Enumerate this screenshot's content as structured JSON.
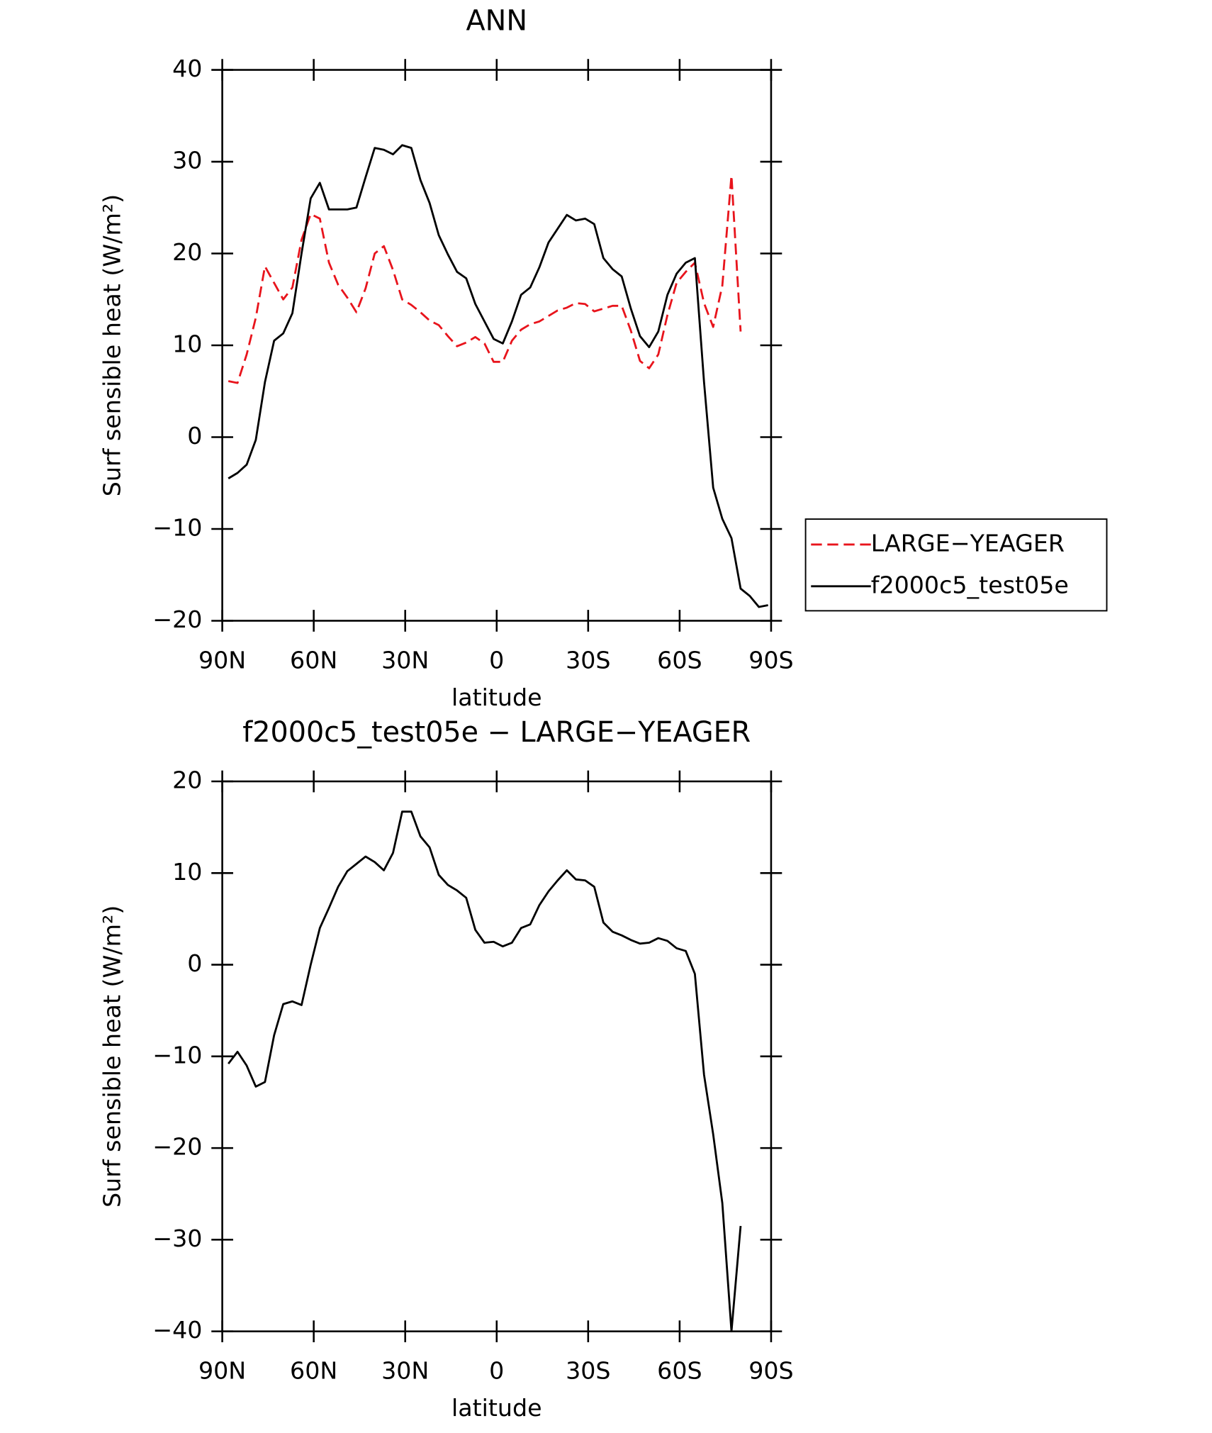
{
  "chart_data": [
    {
      "type": "line",
      "title": "ANN",
      "xlabel": "latitude",
      "ylabel": "Surf sensible heat (W/m²)",
      "x": [
        88,
        85,
        82,
        79,
        76,
        73,
        70,
        67,
        64,
        61,
        58,
        55,
        52,
        49,
        46,
        43,
        40,
        37,
        34,
        31,
        28,
        25,
        22,
        19,
        16,
        13,
        10,
        7,
        4,
        1,
        -2,
        -5,
        -8,
        -11,
        -14,
        -17,
        -20,
        -23,
        -26,
        -29,
        -32,
        -35,
        -38,
        -41,
        -44,
        -47,
        -50,
        -53,
        -56,
        -59,
        -62,
        -65,
        -68,
        -71,
        -74,
        -77,
        -80,
        -83,
        -86,
        -89
      ],
      "xlim": [
        90,
        -90
      ],
      "xticks": [
        {
          "value": 90,
          "label": "90N"
        },
        {
          "value": 60,
          "label": "60N"
        },
        {
          "value": 30,
          "label": "30N"
        },
        0,
        {
          "value": -30,
          "label": "30S"
        },
        {
          "value": -60,
          "label": "60S"
        },
        {
          "value": -90,
          "label": "90S"
        }
      ],
      "ylim": [
        -20,
        40
      ],
      "yticks": [
        {
          "value": -20,
          "label": "−20"
        },
        {
          "value": -10,
          "label": "−10"
        },
        0,
        10,
        20,
        30,
        40
      ],
      "legend": "right",
      "series": [
        {
          "name": "LARGE−YEAGER",
          "color": "#e8141c",
          "line_style": "dashed",
          "values": [
            6.1,
            5.9,
            9,
            13,
            18.6,
            16.8,
            15,
            16.3,
            21.5,
            24.3,
            23.8,
            19,
            16.6,
            15.2,
            13.6,
            16.2,
            20,
            20.8,
            18.2,
            15,
            14.4,
            13.6,
            12.7,
            12.2,
            11,
            9.9,
            10.3,
            10.9,
            10.2,
            8.2,
            8.2,
            10.5,
            11.7,
            12.3,
            12.6,
            13.2,
            13.8,
            14.1,
            14.6,
            14.5,
            13.7,
            14,
            14.3,
            14.3,
            11.6,
            8.3,
            7.5,
            9,
            13.3,
            16.8,
            18,
            19,
            14.6,
            12,
            16.5,
            28.5,
            11.5,
            null,
            null,
            null
          ]
        },
        {
          "name": "f2000c5_test05e",
          "color": "#000000",
          "line_style": "solid",
          "values": [
            -4.5,
            -3.9,
            -3,
            -0.3,
            6,
            10.5,
            11.3,
            13.5,
            20,
            26,
            27.7,
            24.8,
            24.8,
            24.8,
            25,
            28.3,
            31.5,
            31.3,
            30.8,
            31.8,
            31.5,
            28,
            25.5,
            22,
            19.9,
            18,
            17.3,
            14.5,
            12.6,
            10.7,
            10.2,
            12.6,
            15.5,
            16.3,
            18.5,
            21.2,
            22.7,
            24.2,
            23.6,
            23.8,
            23.2,
            19.5,
            18.3,
            17.5,
            14,
            11,
            9.8,
            11.5,
            15.5,
            17.8,
            19,
            19.5,
            6,
            -5.5,
            -8.9,
            -11,
            -16.5,
            -17.3,
            -18.5,
            -18.3
          ]
        }
      ]
    },
    {
      "type": "line",
      "title": "f2000c5_test05e − LARGE−YEAGER",
      "xlabel": "latitude",
      "ylabel": "Surf sensible heat (W/m²)",
      "x": [
        88,
        85,
        82,
        79,
        76,
        73,
        70,
        67,
        64,
        61,
        58,
        55,
        52,
        49,
        46,
        43,
        40,
        37,
        34,
        31,
        28,
        25,
        22,
        19,
        16,
        13,
        10,
        7,
        4,
        1,
        -2,
        -5,
        -8,
        -11,
        -14,
        -17,
        -20,
        -23,
        -26,
        -29,
        -32,
        -35,
        -38,
        -41,
        -44,
        -47,
        -50,
        -53,
        -56,
        -59,
        -62,
        -65,
        -68,
        -71,
        -74,
        -77,
        -80,
        -83,
        -86,
        -89
      ],
      "xlim": [
        90,
        -90
      ],
      "xticks": [
        {
          "value": 90,
          "label": "90N"
        },
        {
          "value": 60,
          "label": "60N"
        },
        {
          "value": 30,
          "label": "30N"
        },
        0,
        {
          "value": -30,
          "label": "30S"
        },
        {
          "value": -60,
          "label": "60S"
        },
        {
          "value": -90,
          "label": "90S"
        }
      ],
      "ylim": [
        -40,
        20
      ],
      "yticks": [
        {
          "value": -40,
          "label": "−40"
        },
        {
          "value": -30,
          "label": "−30"
        },
        {
          "value": -20,
          "label": "−20"
        },
        {
          "value": -10,
          "label": "−10"
        },
        0,
        10,
        20
      ],
      "series": [
        {
          "color": "#000000",
          "line_style": "solid",
          "values": [
            -10.8,
            -9.5,
            -11,
            -13.3,
            -12.8,
            -7.7,
            -4.3,
            -4,
            -4.4,
            0,
            4,
            6.2,
            8.5,
            10.2,
            11,
            11.8,
            11.2,
            10.3,
            12.2,
            16.7,
            16.7,
            14,
            12.8,
            9.8,
            8.7,
            8.1,
            7.3,
            3.8,
            2.4,
            2.5,
            2,
            2.4,
            4,
            4.4,
            6.5,
            8,
            9.2,
            10.3,
            9.3,
            9.2,
            8.5,
            4.6,
            3.6,
            3.2,
            2.7,
            2.3,
            2.4,
            2.9,
            2.6,
            1.8,
            1.5,
            -1,
            -12,
            -18.5,
            -26,
            -40,
            -28.5,
            null,
            null,
            null
          ]
        }
      ]
    }
  ]
}
